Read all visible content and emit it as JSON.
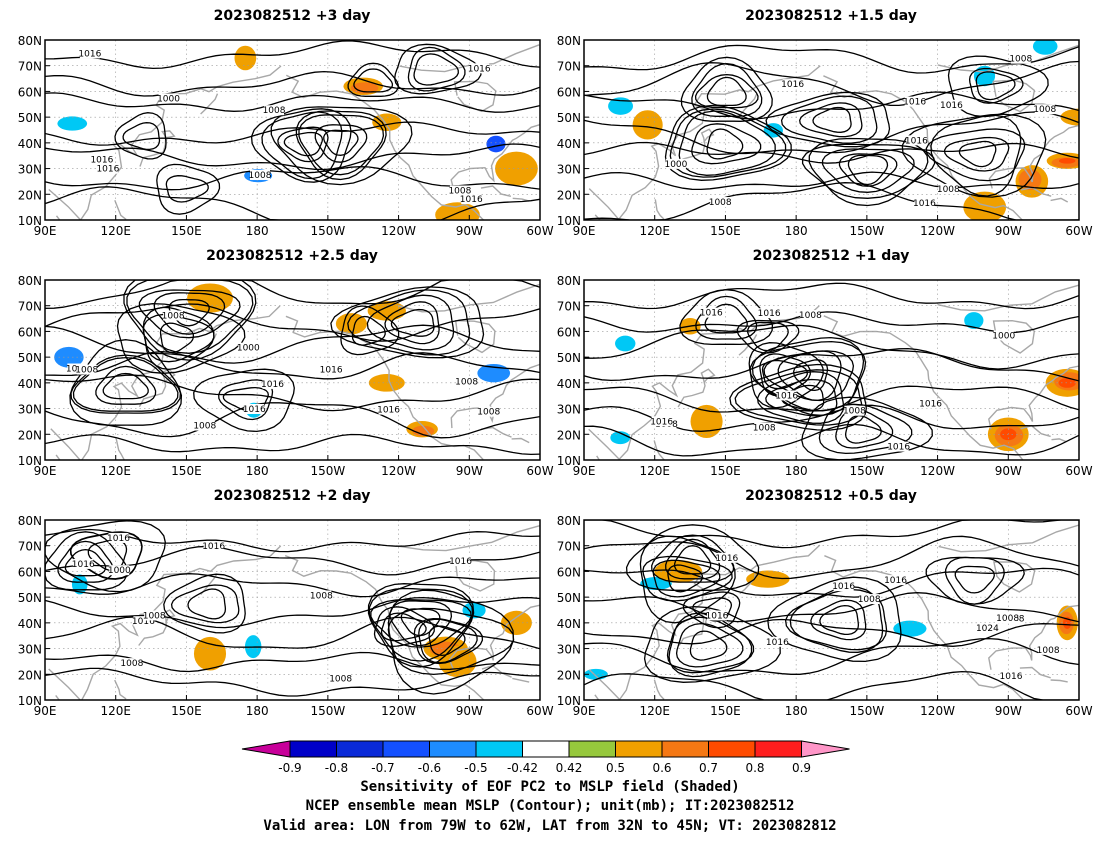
{
  "panels": [
    {
      "title": "2023082512 +3 day",
      "contour_labels": [
        "1008",
        "1000",
        "1008",
        "1016",
        "1016",
        "1016",
        "1016",
        "1008",
        "1016"
      ],
      "shading": [
        {
          "lon": 180,
          "lat": 27,
          "value": -0.6
        },
        {
          "lon": 102,
          "lat": 47,
          "value": -0.55
        },
        {
          "lon": -79,
          "lat": 40,
          "value": -0.7
        },
        {
          "lon": 175,
          "lat": 73,
          "value": 0.55
        },
        {
          "lon": -135,
          "lat": 62,
          "value": 0.65
        },
        {
          "lon": -125,
          "lat": 48,
          "value": 0.55
        },
        {
          "lon": -95,
          "lat": 12,
          "value": 0.55
        },
        {
          "lon": -70,
          "lat": 30,
          "value": 0.6
        }
      ]
    },
    {
      "title": "2023082512 +1.5 day",
      "contour_labels": [
        "1008",
        "1016",
        "1000",
        "1008",
        "1016",
        "1008",
        "1016",
        "1016",
        "1016",
        "1008"
      ],
      "shading": [
        {
          "lon": -65,
          "lat": 33,
          "value": 0.7
        },
        {
          "lon": -80,
          "lat": 25,
          "value": 0.65
        },
        {
          "lon": -60,
          "lat": 50,
          "value": 0.6
        },
        {
          "lon": -100,
          "lat": 15,
          "value": 0.55
        },
        {
          "lon": 105,
          "lat": 55,
          "value": -0.55
        },
        {
          "lon": 117,
          "lat": 47,
          "value": 0.6
        },
        {
          "lon": 170,
          "lat": 45,
          "value": -0.5
        },
        {
          "lon": -100,
          "lat": 66,
          "value": -0.5
        },
        {
          "lon": -75,
          "lat": 78,
          "value": -0.5
        }
      ]
    },
    {
      "title": "2023082512 +2.5 day",
      "contour_labels": [
        "1016",
        "1008",
        "1016",
        "1008",
        "1016",
        "1008",
        "1000",
        "1016",
        "1008",
        "1008",
        "1016"
      ],
      "shading": [
        {
          "lon": 100,
          "lat": 50,
          "value": -0.6
        },
        {
          "lon": 178,
          "lat": 30,
          "value": -0.55
        },
        {
          "lon": -80,
          "lat": 44,
          "value": -0.6
        },
        {
          "lon": -125,
          "lat": 40,
          "value": 0.6
        },
        {
          "lon": -110,
          "lat": 22,
          "value": 0.65
        },
        {
          "lon": -140,
          "lat": 63,
          "value": 0.5
        },
        {
          "lon": -125,
          "lat": 68,
          "value": 0.5
        },
        {
          "lon": 160,
          "lat": 73,
          "value": 0.5
        }
      ]
    },
    {
      "title": "2023082512 +1 day",
      "contour_labels": [
        "1008",
        "1016",
        "1016",
        "1016",
        "1008",
        "1000",
        "1008",
        "1016",
        "1008",
        "1016",
        "1016"
      ],
      "shading": [
        {
          "lon": -65,
          "lat": 40,
          "value": 0.7
        },
        {
          "lon": -90,
          "lat": 20,
          "value": 0.7
        },
        {
          "lon": 105,
          "lat": 18,
          "value": -0.55
        },
        {
          "lon": 108,
          "lat": 55,
          "value": -0.55
        },
        {
          "lon": -105,
          "lat": 65,
          "value": -0.55
        },
        {
          "lon": 142,
          "lat": 25,
          "value": 0.5
        },
        {
          "lon": 135,
          "lat": 62,
          "value": 0.6
        }
      ]
    },
    {
      "title": "2023082512 +2 day",
      "contour_labels": [
        "1016",
        "1008",
        "1008",
        "1016",
        "1016",
        "1008",
        "1000",
        "1016",
        "1008",
        "1016"
      ],
      "shading": [
        {
          "lon": -100,
          "lat": 30,
          "value": 0.65
        },
        {
          "lon": -70,
          "lat": 40,
          "value": 0.6
        },
        {
          "lon": -95,
          "lat": 25,
          "value": 0.6
        },
        {
          "lon": 105,
          "lat": 55,
          "value": -0.5
        },
        {
          "lon": 178,
          "lat": 30,
          "value": -0.5
        },
        {
          "lon": -88,
          "lat": 45,
          "value": -0.55
        },
        {
          "lon": 160,
          "lat": 28,
          "value": 0.5
        }
      ]
    },
    {
      "title": "2023082512 +0.5 day",
      "contour_labels": [
        "1016",
        "1008",
        "1008",
        "1008",
        "1016",
        "1016",
        "1016",
        "1024",
        "1008",
        "1016",
        "1016"
      ],
      "shading": [
        {
          "lon": 120,
          "lat": 55,
          "value": -0.5
        },
        {
          "lon": -65,
          "lat": 40,
          "value": 0.7
        },
        {
          "lon": 130,
          "lat": 60,
          "value": 0.6
        },
        {
          "lon": 168,
          "lat": 57,
          "value": 0.5
        },
        {
          "lon": -132,
          "lat": 37,
          "value": -0.5
        },
        {
          "lon": 95,
          "lat": 20,
          "value": -0.5
        }
      ]
    }
  ],
  "axes": {
    "lon_ticks": [
      "90E",
      "120E",
      "150E",
      "180",
      "150W",
      "120W",
      "90W",
      "60W"
    ],
    "lat_ticks": [
      "80N",
      "70N",
      "60N",
      "50N",
      "40N",
      "30N",
      "20N",
      "10N"
    ],
    "lon_range": [
      90,
      300
    ],
    "lat_range": [
      10,
      80
    ]
  },
  "colorbar": {
    "ticks": [
      "-0.9",
      "-0.8",
      "-0.7",
      "-0.6",
      "-0.5",
      "-0.42",
      "0.42",
      "0.5",
      "0.6",
      "0.7",
      "0.8",
      "0.9"
    ],
    "colors": [
      "#c8009a",
      "#0000c8",
      "#0a2ad8",
      "#1450ff",
      "#1e8cff",
      "#00c8f5",
      "#ffffff",
      "#96c83c",
      "#f0a000",
      "#f57814",
      "#ff4b00",
      "#ff1e1e",
      "#ff96c8"
    ]
  },
  "caption": {
    "line1": "Sensitivity of EOF PC2 to MSLP field (Shaded)",
    "line2": "NCEP ensemble mean MSLP (Contour); unit(mb); IT:2023082512",
    "line3": "Valid area: LON from 79W to 62W, LAT from 32N to 45N; VT: 2023082812"
  }
}
